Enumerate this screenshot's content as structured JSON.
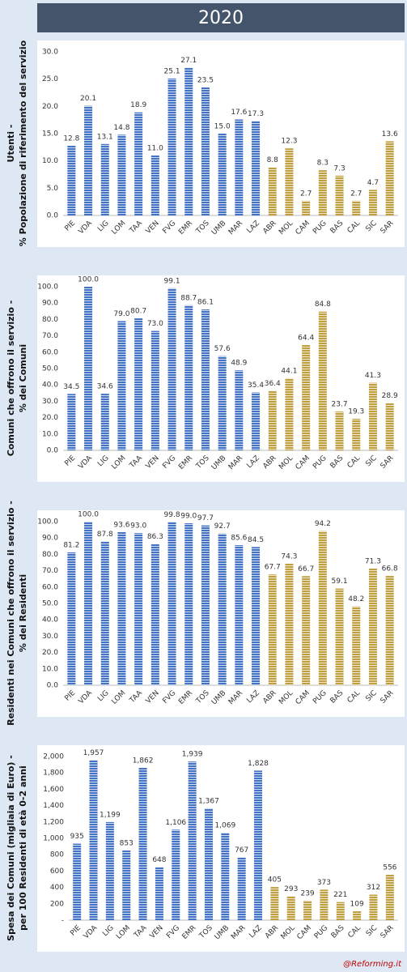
{
  "header": {
    "title": "2020"
  },
  "chart_data": [
    {
      "type": "bar",
      "ylabel": [
        "Utenti -",
        "% Popolazione di riferimento del servizio"
      ],
      "categories": [
        "PIE",
        "VDA",
        "LIG",
        "LOM",
        "TAA",
        "VEN",
        "FVG",
        "EMR",
        "TOS",
        "UMB",
        "MAR",
        "LAZ",
        "ABR",
        "MOL",
        "CAM",
        "PUG",
        "BAS",
        "CAL",
        "SIC",
        "SAR"
      ],
      "values": [
        12.8,
        20.1,
        13.1,
        14.8,
        18.9,
        11.0,
        25.1,
        27.1,
        23.5,
        15.0,
        17.6,
        17.3,
        8.8,
        12.3,
        2.7,
        8.3,
        7.3,
        2.7,
        4.7,
        13.6
      ],
      "value_labels": [
        "12.8",
        "20.1",
        "13.1",
        "14.8",
        "18.9",
        "11.0",
        "25.1",
        "27.1",
        "23.5",
        "15.0",
        "17.6",
        "17.3",
        "8.8",
        "12.3",
        "2.7",
        "8.3",
        "7.3",
        "2.7",
        "4.7",
        "13.6"
      ],
      "colors": [
        "#4472c4",
        "#4472c4",
        "#4472c4",
        "#4472c4",
        "#4472c4",
        "#4472c4",
        "#4472c4",
        "#4472c4",
        "#4472c4",
        "#4472c4",
        "#4472c4",
        "#4472c4",
        "#bfa040",
        "#bfa040",
        "#bfa040",
        "#bfa040",
        "#bfa040",
        "#bfa040",
        "#bfa040",
        "#bfa040"
      ],
      "ylim": [
        0,
        30
      ],
      "yticks": [
        {
          "value": 0,
          "label": "0.0"
        },
        {
          "value": 5,
          "label": "5.0"
        },
        {
          "value": 10,
          "label": "10.0"
        },
        {
          "value": 15,
          "label": "15.0"
        },
        {
          "value": 20,
          "label": "20.0"
        },
        {
          "value": 25,
          "label": "25.0"
        },
        {
          "value": 30,
          "label": "30.0"
        }
      ]
    },
    {
      "type": "bar",
      "ylabel": [
        "Comuni che offrono il servizio -",
        "% dei Comuni"
      ],
      "categories": [
        "PIE",
        "VDA",
        "LIG",
        "LOM",
        "TAA",
        "VEN",
        "FVG",
        "EMR",
        "TOS",
        "UMB",
        "MAR",
        "LAZ",
        "ABR",
        "MOL",
        "CAM",
        "PUG",
        "BAS",
        "CAL",
        "SIC",
        "SAR"
      ],
      "values": [
        34.5,
        100.0,
        34.6,
        79.0,
        80.7,
        73.0,
        99.1,
        88.7,
        86.1,
        57.6,
        48.9,
        35.4,
        36.4,
        44.1,
        64.4,
        84.8,
        23.7,
        19.3,
        41.3,
        28.9
      ],
      "value_labels": [
        "34.5",
        "100.0",
        "34.6",
        "79.0",
        "80.7",
        "73.0",
        "99.1",
        "88.7",
        "86.1",
        "57.6",
        "48.9",
        "35.4",
        "36.4",
        "44.1",
        "64.4",
        "84.8",
        "23.7",
        "19.3",
        "41.3",
        "28.9"
      ],
      "colors": [
        "#4472c4",
        "#4472c4",
        "#4472c4",
        "#4472c4",
        "#4472c4",
        "#4472c4",
        "#4472c4",
        "#4472c4",
        "#4472c4",
        "#4472c4",
        "#4472c4",
        "#4472c4",
        "#bfa040",
        "#bfa040",
        "#bfa040",
        "#bfa040",
        "#bfa040",
        "#bfa040",
        "#bfa040",
        "#bfa040"
      ],
      "ylim": [
        0,
        100
      ],
      "yticks": [
        {
          "value": 0,
          "label": "0.0"
        },
        {
          "value": 10,
          "label": "10.0"
        },
        {
          "value": 20,
          "label": "20.0"
        },
        {
          "value": 30,
          "label": "30.0"
        },
        {
          "value": 40,
          "label": "40.0"
        },
        {
          "value": 50,
          "label": "50.0"
        },
        {
          "value": 60,
          "label": "60.0"
        },
        {
          "value": 70,
          "label": "70.0"
        },
        {
          "value": 80,
          "label": "80.0"
        },
        {
          "value": 90,
          "label": "90.0"
        },
        {
          "value": 100,
          "label": "100.0"
        }
      ]
    },
    {
      "type": "bar",
      "ylabel": [
        "Residenti nei Comuni che offrono il servizio -",
        "% dei Residenti"
      ],
      "categories": [
        "PIE",
        "VDA",
        "LIG",
        "LOM",
        "TAA",
        "VEN",
        "FVG",
        "EMR",
        "TOS",
        "UMB",
        "MAR",
        "LAZ",
        "ABR",
        "MOL",
        "CAM",
        "PUG",
        "BAS",
        "CAL",
        "SIC",
        "SAR"
      ],
      "values": [
        81.2,
        100.0,
        87.8,
        93.6,
        93.0,
        86.3,
        99.8,
        99.0,
        97.7,
        92.7,
        85.6,
        84.5,
        67.7,
        74.3,
        66.7,
        94.2,
        59.1,
        48.2,
        71.3,
        66.8
      ],
      "value_labels": [
        "81.2",
        "100.0",
        "87.8",
        "93.6",
        "93.0",
        "86.3",
        "99.8",
        "99.0",
        "97.7",
        "92.7",
        "85.6",
        "84.5",
        "67.7",
        "74.3",
        "66.7",
        "94.2",
        "59.1",
        "48.2",
        "71.3",
        "66.8"
      ],
      "colors": [
        "#4472c4",
        "#4472c4",
        "#4472c4",
        "#4472c4",
        "#4472c4",
        "#4472c4",
        "#4472c4",
        "#4472c4",
        "#4472c4",
        "#4472c4",
        "#4472c4",
        "#4472c4",
        "#bfa040",
        "#bfa040",
        "#bfa040",
        "#bfa040",
        "#bfa040",
        "#bfa040",
        "#bfa040",
        "#bfa040"
      ],
      "ylim": [
        0,
        100
      ],
      "yticks": [
        {
          "value": 0,
          "label": "0.0"
        },
        {
          "value": 10,
          "label": "10.0"
        },
        {
          "value": 20,
          "label": "20.0"
        },
        {
          "value": 30,
          "label": "30.0"
        },
        {
          "value": 40,
          "label": "40.0"
        },
        {
          "value": 50,
          "label": "50.0"
        },
        {
          "value": 60,
          "label": "60.0"
        },
        {
          "value": 70,
          "label": "70.0"
        },
        {
          "value": 80,
          "label": "80.0"
        },
        {
          "value": 90,
          "label": "90.0"
        },
        {
          "value": 100,
          "label": "100.0"
        }
      ]
    },
    {
      "type": "bar",
      "ylabel": [
        "Spesa dei Comuni (migliaia di Euro) -",
        "per 100 Residenti di età 0-2 anni"
      ],
      "categories": [
        "PIE",
        "VDA",
        "LIG",
        "LOM",
        "TAA",
        "VEN",
        "FVG",
        "EMR",
        "TOS",
        "UMB",
        "MAR",
        "LAZ",
        "ABR",
        "MOL",
        "CAM",
        "PUG",
        "BAS",
        "CAL",
        "SIC",
        "SAR"
      ],
      "values": [
        935,
        1957,
        1199,
        853,
        1862,
        648,
        1106,
        1939,
        1367,
        1069,
        767,
        1828,
        405,
        293,
        239,
        373,
        221,
        109,
        312,
        556
      ],
      "value_labels": [
        "935",
        "1,957",
        "1,199",
        "853",
        "1,862",
        "648",
        "1,106",
        "1,939",
        "1,367",
        "1,069",
        "767",
        "1,828",
        "405",
        "293",
        "239",
        "373",
        "221",
        "109",
        "312",
        "556"
      ],
      "colors": [
        "#4472c4",
        "#4472c4",
        "#4472c4",
        "#4472c4",
        "#4472c4",
        "#4472c4",
        "#4472c4",
        "#4472c4",
        "#4472c4",
        "#4472c4",
        "#4472c4",
        "#4472c4",
        "#bfa040",
        "#bfa040",
        "#bfa040",
        "#bfa040",
        "#bfa040",
        "#bfa040",
        "#bfa040",
        "#bfa040"
      ],
      "ylim": [
        0,
        2000
      ],
      "yticks": [
        {
          "value": 0,
          "label": "-"
        },
        200,
        400,
        600,
        800,
        {
          "value": 1000,
          "label": "1,000"
        },
        {
          "value": 1200,
          "label": "1,200"
        },
        {
          "value": 1400,
          "label": "1,400"
        },
        {
          "value": 1600,
          "label": "1,600"
        },
        {
          "value": 1800,
          "label": "1,800"
        },
        {
          "value": 2000,
          "label": "2,000"
        }
      ]
    }
  ],
  "footer": "@Reforming.it"
}
